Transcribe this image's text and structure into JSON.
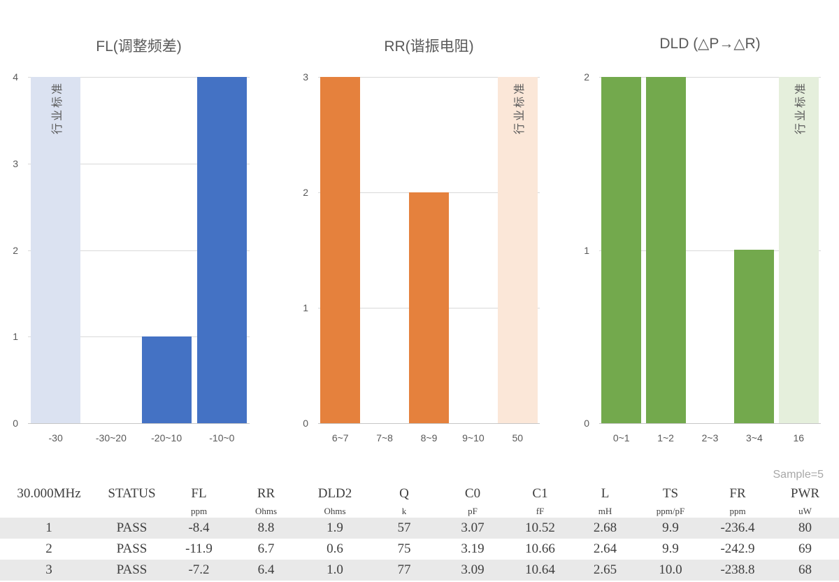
{
  "sample_label": "Sample=5",
  "chart_data": [
    {
      "type": "bar",
      "title": "FL(调整频差)",
      "categories": [
        "-30",
        "-30~20",
        "-20~10",
        "-10~0"
      ],
      "values": [
        null,
        0,
        1,
        4
      ],
      "band": {
        "index": 0,
        "label": "行业标准",
        "value": 4
      },
      "ylim": [
        0,
        4
      ],
      "yticks": [
        0,
        1,
        2,
        3,
        4
      ],
      "bar_color": "#4472c4",
      "band_color": "#dbe2f1",
      "grid": true,
      "legend": false
    },
    {
      "type": "bar",
      "title": "RR(谐振电阻)",
      "categories": [
        "6~7",
        "7~8",
        "8~9",
        "9~10",
        "50"
      ],
      "values": [
        3,
        0,
        2,
        0,
        null
      ],
      "band": {
        "index": 4,
        "label": "行业标准",
        "value": 3
      },
      "ylim": [
        0,
        3
      ],
      "yticks": [
        0,
        1,
        2,
        3
      ],
      "bar_color": "#e5813d",
      "band_color": "#fbe7d8",
      "grid": true,
      "legend": false
    },
    {
      "type": "bar",
      "title": "DLD (△P→△R)",
      "categories": [
        "0~1",
        "1~2",
        "2~3",
        "3~4",
        "16"
      ],
      "values": [
        2,
        2,
        0,
        1,
        null
      ],
      "band": {
        "index": 4,
        "label": "行业标准",
        "value": 2
      },
      "ylim": [
        0,
        2
      ],
      "yticks": [
        0,
        1,
        2
      ],
      "bar_color": "#73a94d",
      "band_color": "#e5efdc",
      "grid": true,
      "legend": false
    }
  ],
  "table": {
    "headers": [
      "30.000MHz",
      "STATUS",
      "FL",
      "RR",
      "DLD2",
      "Q",
      "C0",
      "C1",
      "L",
      "TS",
      "FR",
      "PWR"
    ],
    "units": [
      "",
      "",
      "ppm",
      "Ohms",
      "Ohms",
      "k",
      "pF",
      "fF",
      "mH",
      "ppm/pF",
      "ppm",
      "uW"
    ],
    "rows": [
      [
        "1",
        "PASS",
        "-8.4",
        "8.8",
        "1.9",
        "57",
        "3.07",
        "10.52",
        "2.68",
        "9.9",
        "-236.4",
        "80"
      ],
      [
        "2",
        "PASS",
        "-11.9",
        "6.7",
        "0.6",
        "75",
        "3.19",
        "10.66",
        "2.64",
        "9.9",
        "-242.9",
        "69"
      ],
      [
        "3",
        "PASS",
        "-7.2",
        "6.4",
        "1.0",
        "77",
        "3.09",
        "10.64",
        "2.65",
        "10.0",
        "-238.8",
        "68"
      ]
    ],
    "stripe_color": "#e9e9e9"
  }
}
